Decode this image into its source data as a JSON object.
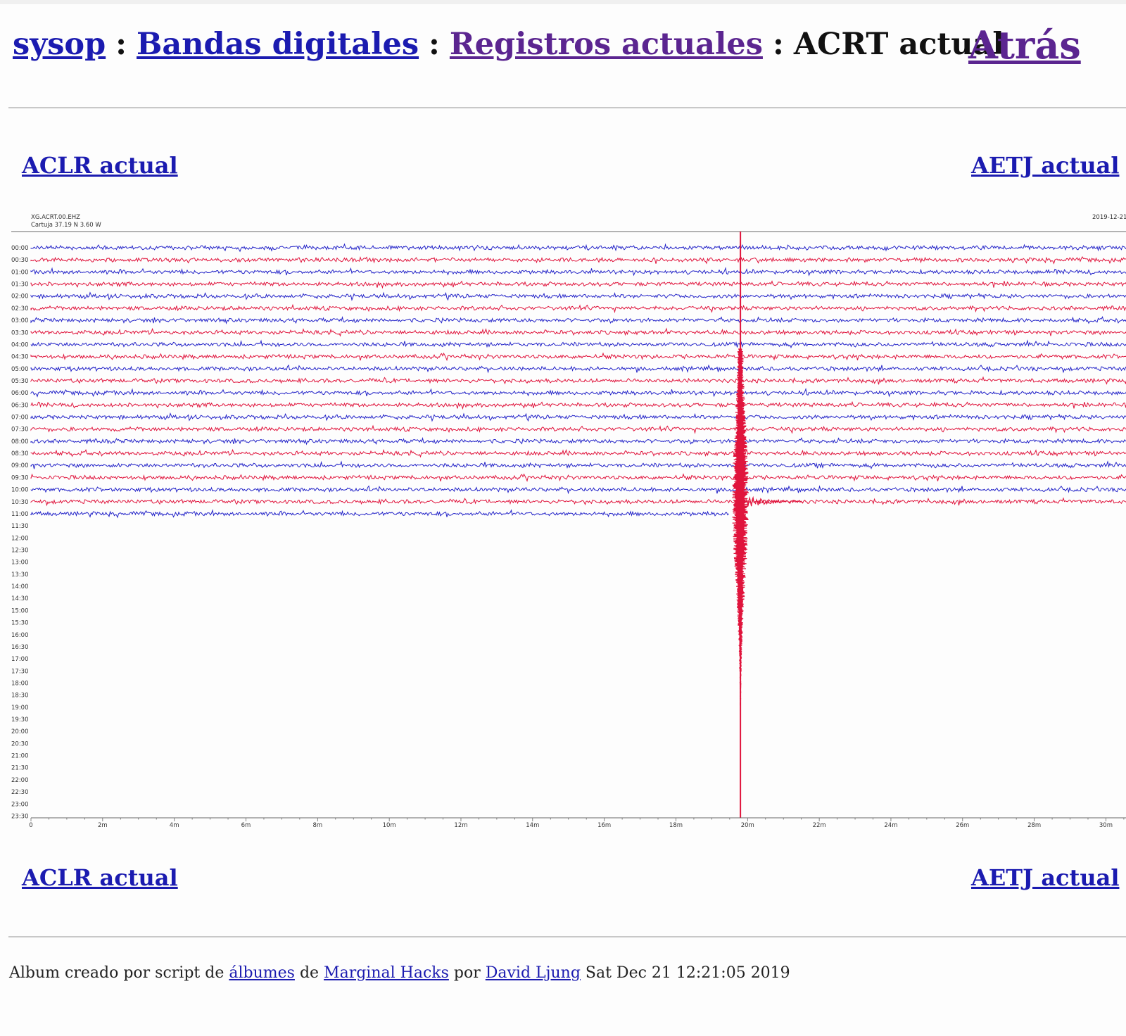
{
  "breadcrumb": {
    "items": [
      "sysop",
      "Bandas digitales",
      "Registros actuales"
    ],
    "separator": ":",
    "current": "ACRT actual"
  },
  "back_label": "Atrás",
  "nav": {
    "prev": "ACLR actual",
    "next": "AETJ actual"
  },
  "helicorder": {
    "header_line1": "XG.ACRT.00.EHZ",
    "header_line2": "Cartuja  37.19 N 3.60 W",
    "header_right": "2019-12-21",
    "row_labels": [
      "00:00",
      "00:30",
      "01:00",
      "01:30",
      "02:00",
      "02:30",
      "03:00",
      "03:30",
      "04:00",
      "04:30",
      "05:00",
      "05:30",
      "06:00",
      "06:30",
      "07:00",
      "07:30",
      "08:00",
      "08:30",
      "09:00",
      "09:30",
      "10:00",
      "10:30",
      "11:00",
      "11:30",
      "12:00",
      "12:30",
      "13:00",
      "13:30",
      "14:00",
      "14:30",
      "15:00",
      "15:30",
      "16:00",
      "16:30",
      "17:00",
      "17:30",
      "18:00",
      "18:30",
      "19:00",
      "19:30",
      "20:00",
      "20:30",
      "21:00",
      "21:30",
      "22:00",
      "22:30",
      "23:00",
      "23:30"
    ],
    "x_ticks": [
      "0",
      "2m",
      "4m",
      "6m",
      "8m",
      "10m",
      "12m",
      "14m",
      "16m",
      "18m",
      "20m",
      "22m",
      "24m",
      "26m",
      "28m",
      "30m"
    ],
    "x_max_minutes": 30,
    "recorded_rows": 23,
    "last_row_end_minutes": 19.5,
    "event_minute": 19.8,
    "colors": {
      "trace_a": "#2323c8",
      "trace_b": "#e0143c"
    }
  },
  "footer": {
    "text_1": "Album creado por script de",
    "link_1": "álbumes",
    "text_2": "de",
    "link_2": "Marginal Hacks",
    "text_3": "por",
    "link_3": "David Ljung",
    "timestamp": "Sat Dec 21 12:21:05 2019"
  }
}
